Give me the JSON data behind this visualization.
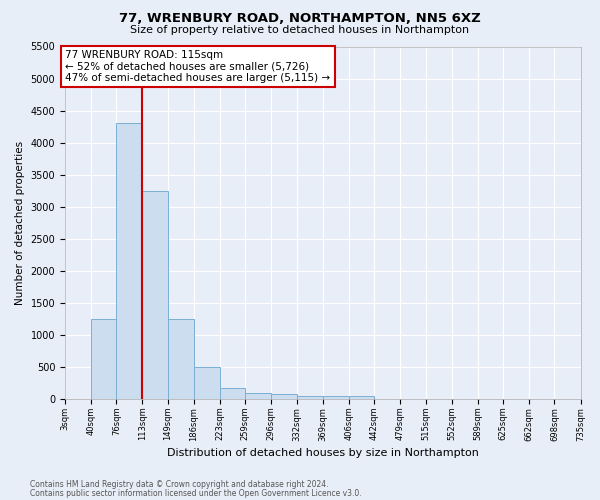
{
  "title1": "77, WRENBURY ROAD, NORTHAMPTON, NN5 6XZ",
  "title2": "Size of property relative to detached houses in Northampton",
  "xlabel": "Distribution of detached houses by size in Northampton",
  "ylabel": "Number of detached properties",
  "footer1": "Contains HM Land Registry data © Crown copyright and database right 2024.",
  "footer2": "Contains public sector information licensed under the Open Government Licence v3.0.",
  "annotation_line1": "77 WRENBURY ROAD: 115sqm",
  "annotation_line2": "← 52% of detached houses are smaller (5,726)",
  "annotation_line3": "47% of semi-detached houses are larger (5,115) →",
  "bar_color": "#ccddf0",
  "bar_edge_color": "#7aafd4",
  "red_line_x": 113,
  "ylim": [
    0,
    5500
  ],
  "yticks": [
    0,
    500,
    1000,
    1500,
    2000,
    2500,
    3000,
    3500,
    4000,
    4500,
    5000,
    5500
  ],
  "bins": [
    3,
    40,
    76,
    113,
    149,
    186,
    223,
    259,
    296,
    332,
    369,
    406,
    442,
    479,
    515,
    552,
    589,
    625,
    662,
    698,
    735
  ],
  "bar_heights": [
    0,
    1250,
    4300,
    3250,
    1250,
    500,
    175,
    100,
    75,
    50,
    50,
    50,
    0,
    0,
    0,
    0,
    0,
    0,
    0,
    0
  ],
  "background_color": "#e8eef8",
  "grid_color": "#ffffff",
  "annotation_box_color": "#ffffff",
  "annotation_box_edge": "#cc0000",
  "red_line_color": "#cc0000",
  "title1_fontsize": 9.5,
  "title2_fontsize": 8,
  "ylabel_fontsize": 7.5,
  "xlabel_fontsize": 8,
  "annotation_fontsize": 7.5,
  "footer_fontsize": 5.5
}
